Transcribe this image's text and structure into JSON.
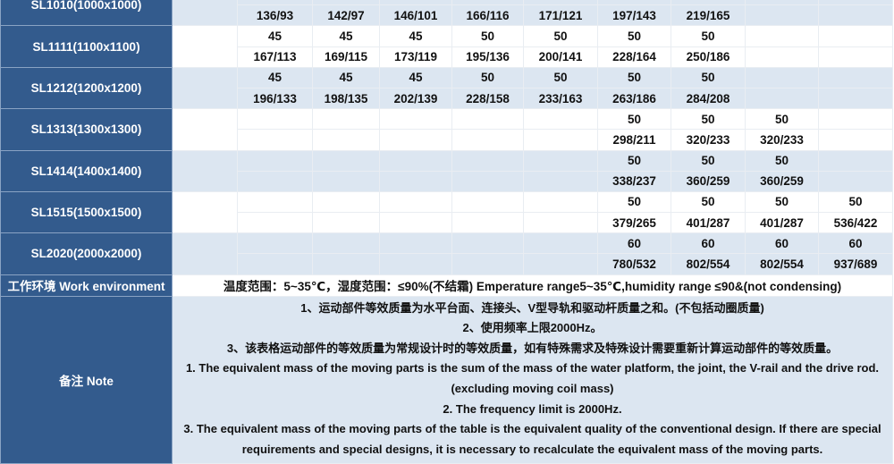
{
  "table": {
    "models": [
      {
        "label": "SL1010(1000x1000)",
        "top": [
          "",
          "",
          "",
          "",
          "",
          "",
          "",
          "",
          ""
        ],
        "bottom": [
          "136/93",
          "142/97",
          "146/101",
          "166/116",
          "171/121",
          "197/143",
          "219/165",
          "",
          ""
        ],
        "shade": "blue"
      },
      {
        "label": "SL1111(1100x1100)",
        "top": [
          "45",
          "45",
          "45",
          "50",
          "50",
          "50",
          "50",
          "",
          ""
        ],
        "bottom": [
          "167/113",
          "169/115",
          "173/119",
          "195/136",
          "200/141",
          "228/164",
          "250/186",
          "",
          ""
        ],
        "shade": "white"
      },
      {
        "label": "SL1212(1200x1200)",
        "top": [
          "45",
          "45",
          "45",
          "50",
          "50",
          "50",
          "50",
          "",
          ""
        ],
        "bottom": [
          "196/133",
          "198/135",
          "202/139",
          "228/158",
          "233/163",
          "263/186",
          "284/208",
          "",
          ""
        ],
        "shade": "blue"
      },
      {
        "label": "SL1313(1300x1300)",
        "top": [
          "",
          "",
          "",
          "",
          "",
          "50",
          "50",
          "50",
          ""
        ],
        "bottom": [
          "",
          "",
          "",
          "",
          "",
          "298/211",
          "320/233",
          "320/233",
          ""
        ],
        "shade": "white"
      },
      {
        "label": "SL1414(1400x1400)",
        "top": [
          "",
          "",
          "",
          "",
          "",
          "50",
          "50",
          "50",
          ""
        ],
        "bottom": [
          "",
          "",
          "",
          "",
          "",
          "338/237",
          "360/259",
          "360/259",
          ""
        ],
        "shade": "blue"
      },
      {
        "label": "SL1515(1500x1500)",
        "top": [
          "",
          "",
          "",
          "",
          "",
          "50",
          "50",
          "50",
          "50"
        ],
        "bottom": [
          "",
          "",
          "",
          "",
          "",
          "379/265",
          "401/287",
          "401/287",
          "536/422"
        ],
        "shade": "white"
      },
      {
        "label": "SL2020(2000x2000)",
        "top": [
          "",
          "",
          "",
          "",
          "",
          "60",
          "60",
          "60",
          "60"
        ],
        "bottom": [
          "",
          "",
          "",
          "",
          "",
          "780/532",
          "802/554",
          "802/554",
          "937/689"
        ],
        "shade": "blue"
      }
    ],
    "work_env": {
      "label": "工作环境  Work environment",
      "text": "温度范围：5~35℃，湿度范围：≤90%(不结霜)  Emperature range5~35℃,humidity range ≤90&(not condensing)"
    },
    "note": {
      "label": "备注 Note",
      "lines": [
        "1、运动部件等效质量为水平台面、连接头、V型导轨和驱动杆质量之和。(不包括动圈质量)",
        "2、使用频率上限2000Hz。",
        "3、该表格运动部件的等效质量为常规设计时的等效质量，如有特殊需求及特殊设计需要重新计算运动部件的等效质量。",
        "1. The equivalent mass of the moving parts is the sum of the mass of the water platform, the joint, the V-rail and the drive rod. (excluding moving coil mass)",
        "2. The frequency limit is 2000Hz.",
        "3. The equivalent mass of the moving parts of the table is the equivalent quality of the conventional design. If there are special requirements and special designs, it is necessary to recalculate the equivalent mass of the moving parts."
      ]
    }
  },
  "colors": {
    "label_bg": "#335b8d",
    "row_blue": "#dce6f1",
    "row_white": "#ffffff"
  }
}
